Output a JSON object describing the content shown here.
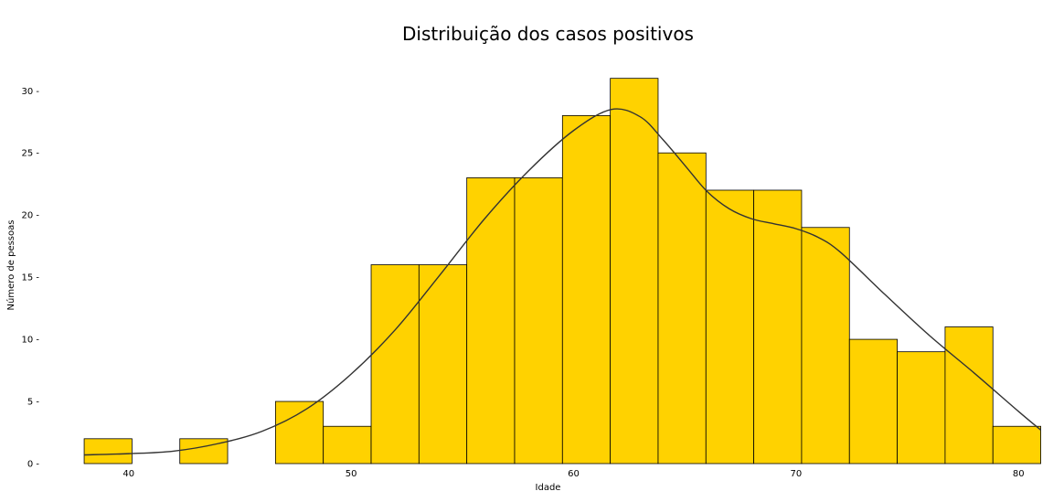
{
  "chart_data": {
    "type": "bar",
    "title": "Distribuição dos casos positivos",
    "xlabel": "Idade",
    "ylabel": "Número de pessoas",
    "xlim": [
      36.6,
      81.1
    ],
    "ylim": [
      0,
      32.3
    ],
    "xticks": [
      "40",
      "50",
      "60",
      "70",
      "80"
    ],
    "yticks": [
      "0 -",
      "5 -",
      "10 -",
      "15 -",
      "20 -",
      "25 -",
      "30 -"
    ],
    "bins": [
      {
        "start": 38.0,
        "end": 40.15,
        "count": 2
      },
      {
        "start": 40.15,
        "end": 42.3,
        "count": 0
      },
      {
        "start": 42.3,
        "end": 44.45,
        "count": 2
      },
      {
        "start": 44.45,
        "end": 46.6,
        "count": 0
      },
      {
        "start": 46.6,
        "end": 48.75,
        "count": 5
      },
      {
        "start": 48.75,
        "end": 50.9,
        "count": 3
      },
      {
        "start": 50.9,
        "end": 53.05,
        "count": 16
      },
      {
        "start": 53.05,
        "end": 55.2,
        "count": 16
      },
      {
        "start": 55.2,
        "end": 57.35,
        "count": 23
      },
      {
        "start": 57.35,
        "end": 59.5,
        "count": 23
      },
      {
        "start": 59.5,
        "end": 61.65,
        "count": 28
      },
      {
        "start": 61.65,
        "end": 63.8,
        "count": 31
      },
      {
        "start": 63.8,
        "end": 65.95,
        "count": 25
      },
      {
        "start": 65.95,
        "end": 68.1,
        "count": 22
      },
      {
        "start": 68.1,
        "end": 70.25,
        "count": 22
      },
      {
        "start": 70.25,
        "end": 72.4,
        "count": 19
      },
      {
        "start": 72.4,
        "end": 74.55,
        "count": 10
      },
      {
        "start": 74.55,
        "end": 76.7,
        "count": 9
      },
      {
        "start": 76.7,
        "end": 78.85,
        "count": 11
      },
      {
        "start": 78.85,
        "end": 81.0,
        "count": 3
      }
    ],
    "kde": {
      "x": [
        38.0,
        40.0,
        42.0,
        44.0,
        46.0,
        48.0,
        50.0,
        52.0,
        54.0,
        56.0,
        58.0,
        60.0,
        61.7,
        63.0,
        64.0,
        65.0,
        66.0,
        67.0,
        68.0,
        69.0,
        70.0,
        71.0,
        72.0,
        74.0,
        76.0,
        78.0,
        80.0,
        81.0
      ],
      "y": [
        0.7,
        0.8,
        1.0,
        1.6,
        2.6,
        4.4,
        7.2,
        10.8,
        15.2,
        19.7,
        23.6,
        26.8,
        28.5,
        27.9,
        26.1,
        24.0,
        21.9,
        20.5,
        19.7,
        19.3,
        18.9,
        18.2,
        17.0,
        13.6,
        10.3,
        7.3,
        4.2,
        2.7
      ]
    },
    "bar_color": "#FFD200",
    "edge_color": "#000000",
    "line_color": "#333333",
    "grid": false
  }
}
